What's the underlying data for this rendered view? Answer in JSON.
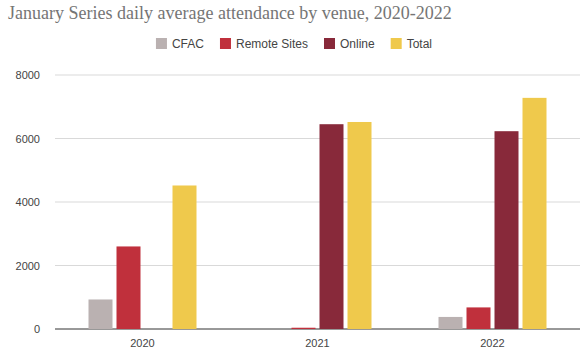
{
  "chart_data": {
    "type": "bar",
    "title": "January Series daily average attendance by venue, 2020-2022",
    "categories": [
      "2020",
      "2021",
      "2022"
    ],
    "series": [
      {
        "name": "CFAC",
        "color": "#bab1b1",
        "values": [
          930,
          0,
          380
        ]
      },
      {
        "name": "Remote Sites",
        "color": "#c0303c",
        "values": [
          2600,
          40,
          680
        ]
      },
      {
        "name": "Online",
        "color": "#88293a",
        "values": [
          0,
          6450,
          6230
        ]
      },
      {
        "name": "Total",
        "color": "#efc94c",
        "values": [
          4520,
          6520,
          7280
        ]
      }
    ],
    "ylim": [
      0,
      8000
    ],
    "yticks": [
      0,
      2000,
      4000,
      6000,
      8000
    ],
    "grid": true,
    "legend": "top"
  }
}
